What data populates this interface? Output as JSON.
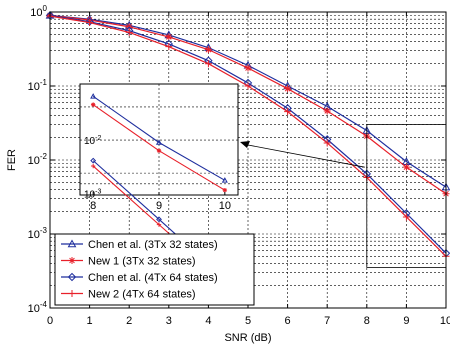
{
  "chart_data": {
    "type": "line",
    "title": "",
    "xlabel": "SNR (dB)",
    "ylabel": "FER",
    "xlim": [
      0,
      10
    ],
    "ylim_log10": [
      -4,
      0
    ],
    "yscale": "log",
    "grid": true,
    "x_ticks": [
      "0",
      "1",
      "2",
      "3",
      "4",
      "5",
      "6",
      "7",
      "8",
      "9",
      "10"
    ],
    "y_tick_mantissa": "10",
    "y_tick_exponents": [
      "0",
      "-1",
      "-2",
      "-3",
      "-4"
    ],
    "legend_position": "bottom-left",
    "series": [
      {
        "name": "Chen et al. (3Tx 32 states)",
        "color": "#1f2f9e",
        "marker": "triangle",
        "x": [
          0,
          1,
          2,
          3,
          4,
          5,
          6,
          7,
          8,
          9,
          10
        ],
        "y": [
          0.9,
          0.8,
          0.66,
          0.49,
          0.33,
          0.19,
          0.1,
          0.053,
          0.025,
          0.0095,
          0.0043
        ]
      },
      {
        "name": "New 1 (3Tx 32 states)",
        "color": "#e8202a",
        "marker": "star",
        "x": [
          0,
          1,
          2,
          3,
          4,
          5,
          6,
          7,
          8,
          9,
          10
        ],
        "y": [
          0.9,
          0.78,
          0.63,
          0.46,
          0.31,
          0.175,
          0.092,
          0.046,
          0.021,
          0.008,
          0.0035
        ]
      },
      {
        "name": "Chen et al. (4Tx 64 states)",
        "color": "#1f2f9e",
        "marker": "diamond",
        "x": [
          0,
          1,
          2,
          3,
          4,
          5,
          6,
          7,
          8,
          9,
          10
        ],
        "y": [
          0.9,
          0.74,
          0.56,
          0.37,
          0.22,
          0.11,
          0.05,
          0.019,
          0.0065,
          0.0019,
          0.00055
        ]
      },
      {
        "name": "New 2 (4Tx 64 states)",
        "color": "#e8202a",
        "marker": "plus",
        "x": [
          0,
          1,
          2,
          3,
          4,
          5,
          6,
          7,
          8,
          9,
          10
        ],
        "y": [
          0.88,
          0.72,
          0.53,
          0.34,
          0.2,
          0.1,
          0.045,
          0.017,
          0.0058,
          0.0017,
          0.0005
        ]
      }
    ],
    "inset": {
      "xlim": [
        7.8,
        10.2
      ],
      "ylim_log10": [
        -2.5,
        -1.49
      ],
      "x_ticks": [
        "8",
        "9",
        "10"
      ],
      "y_tick_mantissa": "10",
      "y_tick_exponents": [
        "-2",
        "-3"
      ],
      "zoom_region": {
        "x": [
          8,
          10
        ],
        "y": [
          0.0004,
          0.025
        ]
      }
    }
  }
}
